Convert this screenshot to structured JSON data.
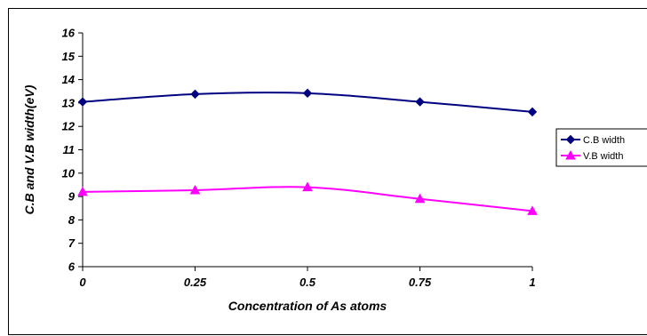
{
  "chart_data": {
    "type": "line",
    "title": "",
    "xlabel": "Concentration of As atoms",
    "ylabel": "C.B and V.B width(eV)",
    "x": [
      0,
      0.25,
      0.5,
      0.75,
      1
    ],
    "x_tick_labels": [
      "0",
      "0.25",
      "0.5",
      "0.75",
      "1"
    ],
    "ylim": [
      6,
      16
    ],
    "y_ticks": [
      6,
      7,
      8,
      9,
      10,
      11,
      12,
      13,
      14,
      15,
      16
    ],
    "grid": false,
    "legend_position": "right",
    "smooth": true,
    "series": [
      {
        "name": "C.B width",
        "values": [
          13.05,
          13.38,
          13.42,
          13.05,
          12.62
        ],
        "color": "#000080",
        "marker": "diamond"
      },
      {
        "name": "V.B width",
        "values": [
          9.2,
          9.27,
          9.4,
          8.9,
          8.38
        ],
        "color": "#FF00FF",
        "marker": "triangle"
      }
    ]
  }
}
